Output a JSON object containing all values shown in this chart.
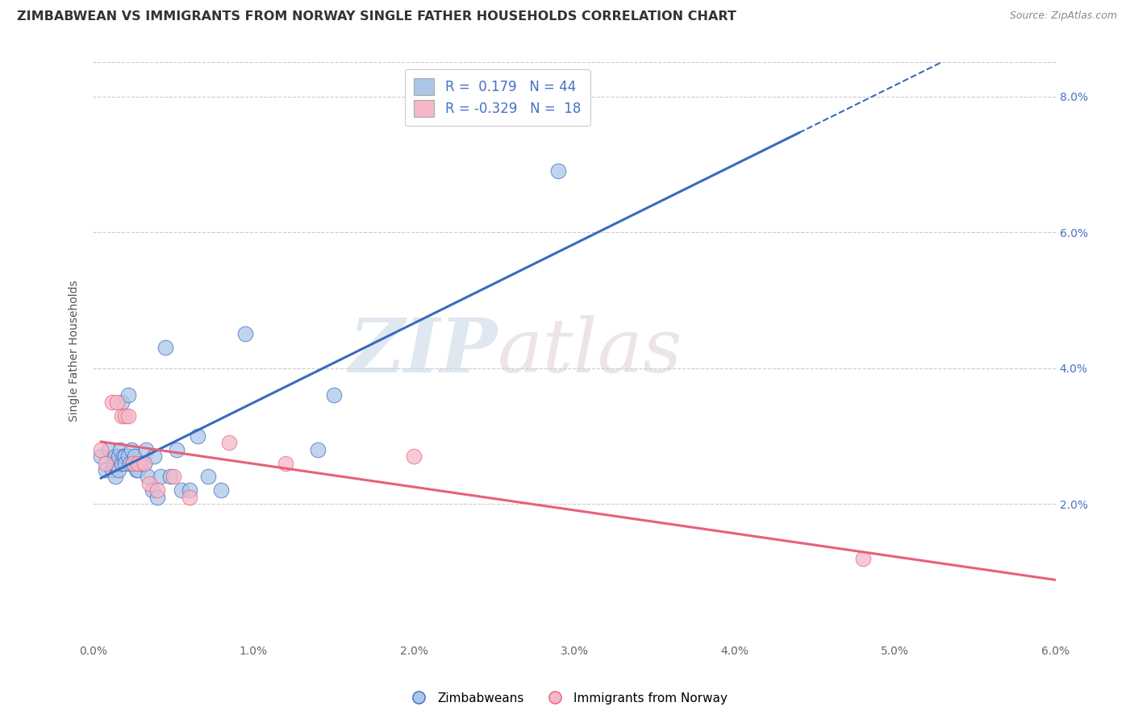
{
  "title": "ZIMBABWEAN VS IMMIGRANTS FROM NORWAY SINGLE FATHER HOUSEHOLDS CORRELATION CHART",
  "source_text": "Source: ZipAtlas.com",
  "ylabel": "Single Father Households",
  "xlim": [
    0.0,
    0.06
  ],
  "ylim": [
    0.0,
    0.085
  ],
  "xtick_vals": [
    0.0,
    0.01,
    0.02,
    0.03,
    0.04,
    0.05,
    0.06
  ],
  "xtick_labels": [
    "0.0%",
    "1.0%",
    "2.0%",
    "3.0%",
    "4.0%",
    "5.0%",
    "6.0%"
  ],
  "ytick_positions": [
    0.0,
    0.02,
    0.04,
    0.06,
    0.08
  ],
  "ytick_labels_right": [
    "",
    "2.0%",
    "4.0%",
    "6.0%",
    "8.0%"
  ],
  "watermark_zip": "ZIP",
  "watermark_atlas": "atlas",
  "R_blue": 0.179,
  "N_blue": 44,
  "R_pink": -0.329,
  "N_pink": 18,
  "blue_fill": "#adc6e8",
  "pink_fill": "#f5b8c8",
  "line_blue": "#3a6abf",
  "line_pink": "#e8607a",
  "blue_scatter": [
    [
      0.0005,
      0.027
    ],
    [
      0.0008,
      0.025
    ],
    [
      0.001,
      0.028
    ],
    [
      0.0012,
      0.025
    ],
    [
      0.0013,
      0.026
    ],
    [
      0.0014,
      0.024
    ],
    [
      0.0014,
      0.027
    ],
    [
      0.0015,
      0.026
    ],
    [
      0.0016,
      0.025
    ],
    [
      0.0016,
      0.027
    ],
    [
      0.0017,
      0.028
    ],
    [
      0.0018,
      0.026
    ],
    [
      0.0018,
      0.035
    ],
    [
      0.0019,
      0.027
    ],
    [
      0.002,
      0.027
    ],
    [
      0.002,
      0.026
    ],
    [
      0.0022,
      0.036
    ],
    [
      0.0022,
      0.027
    ],
    [
      0.0023,
      0.026
    ],
    [
      0.0024,
      0.028
    ],
    [
      0.0025,
      0.026
    ],
    [
      0.0026,
      0.027
    ],
    [
      0.0027,
      0.025
    ],
    [
      0.0028,
      0.025
    ],
    [
      0.003,
      0.026
    ],
    [
      0.0032,
      0.026
    ],
    [
      0.0033,
      0.028
    ],
    [
      0.0034,
      0.024
    ],
    [
      0.0037,
      0.022
    ],
    [
      0.0038,
      0.027
    ],
    [
      0.004,
      0.021
    ],
    [
      0.0042,
      0.024
    ],
    [
      0.0045,
      0.043
    ],
    [
      0.0048,
      0.024
    ],
    [
      0.0052,
      0.028
    ],
    [
      0.0055,
      0.022
    ],
    [
      0.006,
      0.022
    ],
    [
      0.0065,
      0.03
    ],
    [
      0.0072,
      0.024
    ],
    [
      0.008,
      0.022
    ],
    [
      0.0095,
      0.045
    ],
    [
      0.014,
      0.028
    ],
    [
      0.015,
      0.036
    ],
    [
      0.029,
      0.069
    ]
  ],
  "pink_scatter": [
    [
      0.0005,
      0.028
    ],
    [
      0.0008,
      0.026
    ],
    [
      0.0012,
      0.035
    ],
    [
      0.0015,
      0.035
    ],
    [
      0.0018,
      0.033
    ],
    [
      0.002,
      0.033
    ],
    [
      0.0022,
      0.033
    ],
    [
      0.0025,
      0.026
    ],
    [
      0.0028,
      0.026
    ],
    [
      0.0032,
      0.026
    ],
    [
      0.0035,
      0.023
    ],
    [
      0.004,
      0.022
    ],
    [
      0.005,
      0.024
    ],
    [
      0.006,
      0.021
    ],
    [
      0.0085,
      0.029
    ],
    [
      0.012,
      0.026
    ],
    [
      0.02,
      0.027
    ],
    [
      0.048,
      0.012
    ]
  ],
  "blue_line_solid_end": 0.044,
  "title_fontsize": 11.5,
  "axis_label_fontsize": 10,
  "tick_fontsize": 10,
  "legend_fontsize": 12,
  "grid_color": "#cccccc",
  "grid_style": "--"
}
